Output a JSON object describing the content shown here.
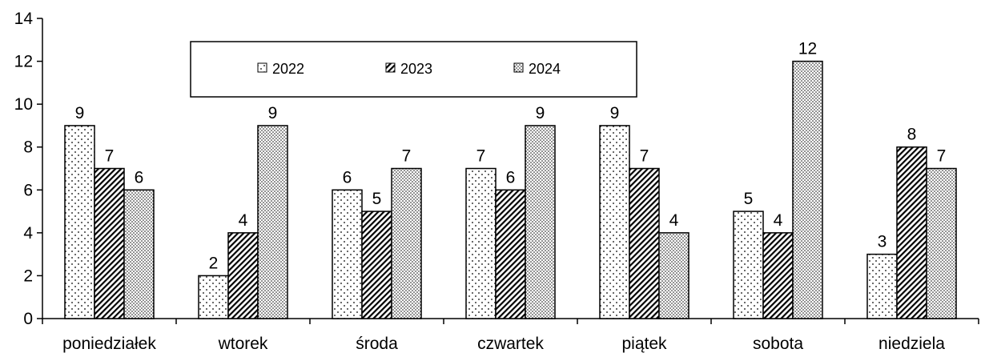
{
  "chart_data": {
    "type": "bar",
    "title": "",
    "xlabel": "",
    "ylabel": "",
    "categories": [
      "poniedziałek",
      "wtorek",
      "środa",
      "czwartek",
      "piątek",
      "sobota",
      "niedziela"
    ],
    "series": [
      {
        "name": "2022",
        "values": [
          9,
          2,
          6,
          7,
          9,
          5,
          3
        ],
        "pattern": "sparse-dots"
      },
      {
        "name": "2023",
        "values": [
          7,
          4,
          5,
          6,
          7,
          4,
          8
        ],
        "pattern": "diagonal-hatch"
      },
      {
        "name": "2024",
        "values": [
          6,
          9,
          7,
          9,
          4,
          12,
          7
        ],
        "pattern": "dense-dots"
      }
    ],
    "ylim": [
      0,
      14
    ],
    "yticks": [
      0,
      2,
      4,
      6,
      8,
      10,
      12,
      14
    ],
    "grid": false,
    "legend_position": "top-center",
    "data_labels": true,
    "colors": {
      "bar_fill": "#ffffff",
      "bar_stroke": "#000000",
      "axis": "#000000"
    }
  }
}
